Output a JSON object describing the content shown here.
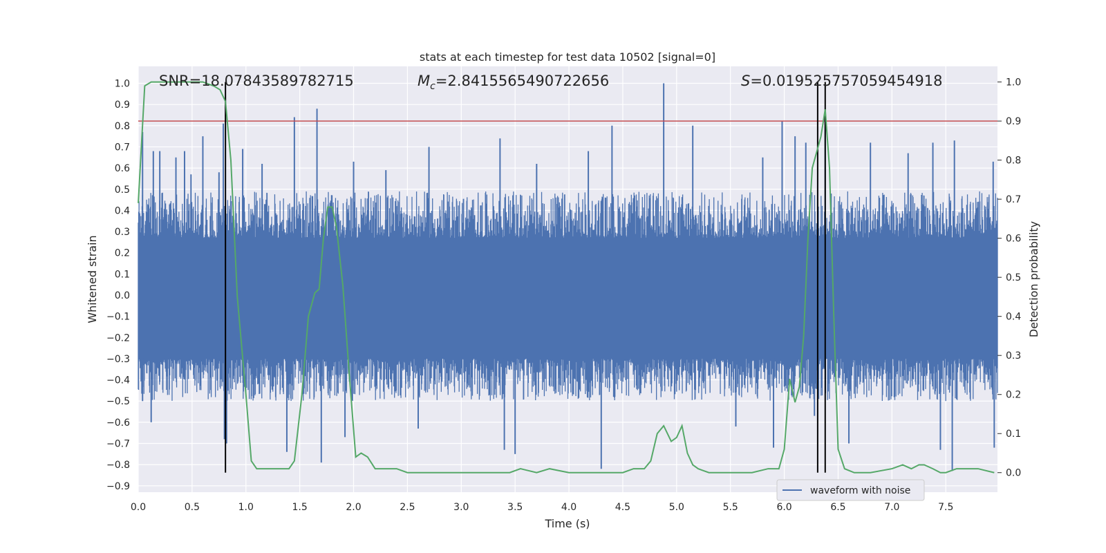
{
  "chart_data": {
    "type": "line",
    "title": "stats at each timestep for test data 10502 [signal=0]",
    "xlabel": "Time (s)",
    "ylabel": "Whitened strain",
    "y2label": "Detection probability",
    "xlim": [
      0.0,
      7.98
    ],
    "ylim": [
      -0.93,
      1.08
    ],
    "y2lim": [
      -0.05,
      1.04
    ],
    "xticks": [
      0.0,
      0.5,
      1.0,
      1.5,
      2.0,
      2.5,
      3.0,
      3.5,
      4.0,
      4.5,
      5.0,
      5.5,
      6.0,
      6.5,
      7.0,
      7.5
    ],
    "xtick_labels": [
      "0.0",
      "0.5",
      "1.0",
      "1.5",
      "2.0",
      "2.5",
      "3.0",
      "3.5",
      "4.0",
      "4.5",
      "5.0",
      "5.5",
      "6.0",
      "6.5",
      "7.0",
      "7.5"
    ],
    "yticks": [
      -0.9,
      -0.8,
      -0.7,
      -0.6,
      -0.5,
      -0.4,
      -0.3,
      -0.2,
      -0.1,
      0.0,
      0.1,
      0.2,
      0.3,
      0.4,
      0.5,
      0.6,
      0.7,
      0.8,
      0.9,
      1.0
    ],
    "ytick_labels": [
      "−0.9",
      "−0.8",
      "−0.7",
      "−0.6",
      "−0.5",
      "−0.4",
      "−0.3",
      "−0.2",
      "−0.1",
      "0.0",
      "0.1",
      "0.2",
      "0.3",
      "0.4",
      "0.5",
      "0.6",
      "0.7",
      "0.8",
      "0.9",
      "1.0"
    ],
    "y2ticks": [
      0.0,
      0.1,
      0.2,
      0.3,
      0.4,
      0.5,
      0.6,
      0.7,
      0.8,
      0.9,
      1.0
    ],
    "y2tick_labels": [
      "0.0",
      "0.1",
      "0.2",
      "0.3",
      "0.4",
      "0.5",
      "0.6",
      "0.7",
      "0.8",
      "0.9",
      "1.0"
    ],
    "grid": true,
    "legend": {
      "placement": "lower-center-right",
      "entries": [
        "waveform with noise"
      ]
    },
    "annotations": {
      "snr": "SNR=18.07843589782715",
      "mc_symbol": "M",
      "mc_sub": "c",
      "mc_value": "=2.8415565490722656",
      "s_symbol": "S",
      "s_value": "=0.019525757059454918"
    },
    "threshold_prob": 0.9,
    "vlines": [
      0.81,
      6.31,
      6.38
    ],
    "colors": {
      "waveform": "#4c72b0",
      "probability": "#55a868",
      "threshold": "#c44e52",
      "vlines": "#000000",
      "axes_bg": "#eaeaf2",
      "grid": "#ffffff"
    },
    "waveform": {
      "name": "waveform with noise",
      "band_low": -0.3,
      "band_high": 0.27,
      "peaks": [
        {
          "x": 0.04,
          "y": 0.77
        },
        {
          "x": 0.14,
          "y": 0.68
        },
        {
          "x": 0.2,
          "y": 0.68
        },
        {
          "x": 0.35,
          "y": 0.65
        },
        {
          "x": 0.43,
          "y": 0.68
        },
        {
          "x": 0.49,
          "y": 0.57
        },
        {
          "x": 0.6,
          "y": 0.75
        },
        {
          "x": 0.75,
          "y": 0.58
        },
        {
          "x": 0.79,
          "y": 0.81
        },
        {
          "x": 0.97,
          "y": 0.69
        },
        {
          "x": 1.15,
          "y": 0.62
        },
        {
          "x": 1.45,
          "y": 0.84
        },
        {
          "x": 1.66,
          "y": 0.88
        },
        {
          "x": 2.0,
          "y": 0.63
        },
        {
          "x": 2.3,
          "y": 0.59
        },
        {
          "x": 2.7,
          "y": 0.7
        },
        {
          "x": 3.36,
          "y": 0.74
        },
        {
          "x": 3.7,
          "y": 0.62
        },
        {
          "x": 4.18,
          "y": 0.68
        },
        {
          "x": 4.4,
          "y": 0.8
        },
        {
          "x": 4.88,
          "y": 1.0
        },
        {
          "x": 5.15,
          "y": 0.8
        },
        {
          "x": 5.8,
          "y": 0.65
        },
        {
          "x": 5.98,
          "y": 0.82
        },
        {
          "x": 6.1,
          "y": 0.75
        },
        {
          "x": 6.2,
          "y": 0.72
        },
        {
          "x": 6.38,
          "y": 0.85
        },
        {
          "x": 6.8,
          "y": 0.72
        },
        {
          "x": 7.15,
          "y": 0.67
        },
        {
          "x": 7.38,
          "y": 0.72
        },
        {
          "x": 7.58,
          "y": 0.73
        },
        {
          "x": 7.94,
          "y": 0.63
        }
      ],
      "troughs": [
        {
          "x": 0.04,
          "y": -0.5
        },
        {
          "x": 0.12,
          "y": -0.6
        },
        {
          "x": 0.8,
          "y": -0.68
        },
        {
          "x": 0.82,
          "y": -0.7
        },
        {
          "x": 1.38,
          "y": -0.74
        },
        {
          "x": 1.7,
          "y": -0.79
        },
        {
          "x": 1.92,
          "y": -0.67
        },
        {
          "x": 2.6,
          "y": -0.63
        },
        {
          "x": 3.4,
          "y": -0.73
        },
        {
          "x": 3.5,
          "y": -0.75
        },
        {
          "x": 4.3,
          "y": -0.82
        },
        {
          "x": 5.55,
          "y": -0.62
        },
        {
          "x": 5.9,
          "y": -0.72
        },
        {
          "x": 6.28,
          "y": -0.57
        },
        {
          "x": 6.6,
          "y": -0.7
        },
        {
          "x": 7.45,
          "y": -0.73
        },
        {
          "x": 7.56,
          "y": -0.83
        },
        {
          "x": 7.95,
          "y": -0.72
        }
      ]
    },
    "probability": {
      "name": "detection probability",
      "x": [
        0.0,
        0.06,
        0.12,
        0.2,
        0.3,
        0.4,
        0.5,
        0.6,
        0.7,
        0.76,
        0.81,
        0.86,
        0.92,
        1.0,
        1.05,
        1.1,
        1.2,
        1.3,
        1.4,
        1.45,
        1.52,
        1.58,
        1.64,
        1.68,
        1.72,
        1.76,
        1.8,
        1.84,
        1.9,
        1.96,
        2.02,
        2.07,
        2.13,
        2.2,
        2.27,
        2.32,
        2.4,
        2.5,
        2.7,
        3.0,
        3.3,
        3.45,
        3.55,
        3.7,
        3.82,
        4.0,
        4.3,
        4.5,
        4.6,
        4.7,
        4.76,
        4.82,
        4.88,
        4.95,
        5.0,
        5.05,
        5.1,
        5.15,
        5.2,
        5.3,
        5.5,
        5.7,
        5.85,
        5.95,
        6.0,
        6.05,
        6.1,
        6.14,
        6.18,
        6.22,
        6.26,
        6.3,
        6.34,
        6.38,
        6.42,
        6.46,
        6.5,
        6.56,
        6.65,
        6.8,
        7.0,
        7.1,
        7.18,
        7.25,
        7.3,
        7.38,
        7.45,
        7.5,
        7.6,
        7.8,
        7.95
      ],
      "values": [
        0.69,
        0.99,
        1.0,
        1.0,
        1.0,
        1.0,
        1.0,
        1.0,
        0.99,
        0.98,
        0.95,
        0.8,
        0.45,
        0.2,
        0.03,
        0.01,
        0.01,
        0.01,
        0.01,
        0.03,
        0.2,
        0.4,
        0.46,
        0.47,
        0.6,
        0.68,
        0.68,
        0.63,
        0.48,
        0.25,
        0.04,
        0.05,
        0.04,
        0.01,
        0.01,
        0.01,
        0.01,
        0.0,
        0.0,
        0.0,
        0.0,
        0.0,
        0.01,
        0.0,
        0.01,
        0.0,
        0.0,
        0.0,
        0.01,
        0.01,
        0.03,
        0.1,
        0.12,
        0.08,
        0.09,
        0.12,
        0.05,
        0.02,
        0.01,
        0.0,
        0.0,
        0.0,
        0.01,
        0.01,
        0.06,
        0.24,
        0.18,
        0.22,
        0.35,
        0.6,
        0.78,
        0.82,
        0.86,
        0.93,
        0.78,
        0.4,
        0.06,
        0.01,
        0.0,
        0.0,
        0.01,
        0.02,
        0.01,
        0.02,
        0.02,
        0.01,
        0.0,
        0.0,
        0.01,
        0.01,
        0.0
      ]
    }
  }
}
